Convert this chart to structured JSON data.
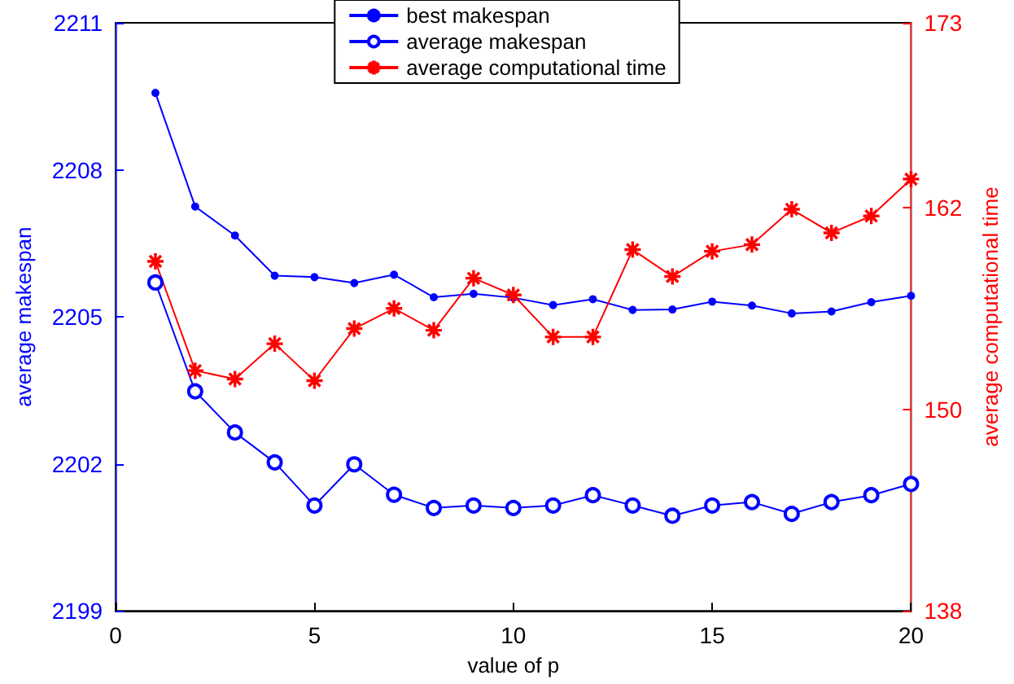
{
  "chart_data": {
    "type": "line",
    "xlabel": "value of p",
    "ylabel": "average makespan",
    "y2label": "average computational time",
    "x": [
      1,
      2,
      3,
      4,
      5,
      6,
      7,
      8,
      9,
      10,
      11,
      12,
      13,
      14,
      15,
      16,
      17,
      18,
      19,
      20
    ],
    "series": [
      {
        "name": "best makespan",
        "color": "#0000ff",
        "marker": "dot",
        "values": [
          2209.57,
          2207.25,
          2206.66,
          2205.84,
          2205.81,
          2205.69,
          2205.86,
          2205.4,
          2205.47,
          2205.39,
          2205.24,
          2205.36,
          2205.14,
          2205.15,
          2205.31,
          2205.23,
          2205.07,
          2205.11,
          2205.3,
          2205.43
        ]
      },
      {
        "name": "average makespan",
        "color": "#0000ff",
        "marker": "circle",
        "values": [
          2205.7,
          2203.48,
          2202.64,
          2202.03,
          2201.15,
          2201.99,
          2201.37,
          2201.1,
          2201.15,
          2201.1,
          2201.15,
          2201.36,
          2201.15,
          2200.94,
          2201.15,
          2201.22,
          2200.98,
          2201.22,
          2201.36,
          2201.59
        ]
      },
      {
        "name": "average computational time",
        "color": "#ff0000",
        "marker": "cross",
        "axis": "y2",
        "values": [
          158.8,
          152.3,
          151.8,
          153.9,
          151.7,
          154.8,
          156.0,
          154.7,
          157.8,
          156.8,
          154.3,
          154.3,
          159.5,
          157.9,
          159.4,
          159.8,
          161.9,
          160.5,
          161.5,
          163.7
        ]
      }
    ],
    "xlim": [
      0,
      20
    ],
    "xticks": [
      0,
      5,
      10,
      15,
      20
    ],
    "ylim": [
      2199,
      2211
    ],
    "yticks": [
      2199,
      2202,
      2205,
      2208,
      2211
    ],
    "y2lim": [
      138,
      173
    ],
    "y2ticks": [
      138,
      150,
      162,
      173
    ],
    "grid": false,
    "legend": "top",
    "line_style": "solid"
  }
}
